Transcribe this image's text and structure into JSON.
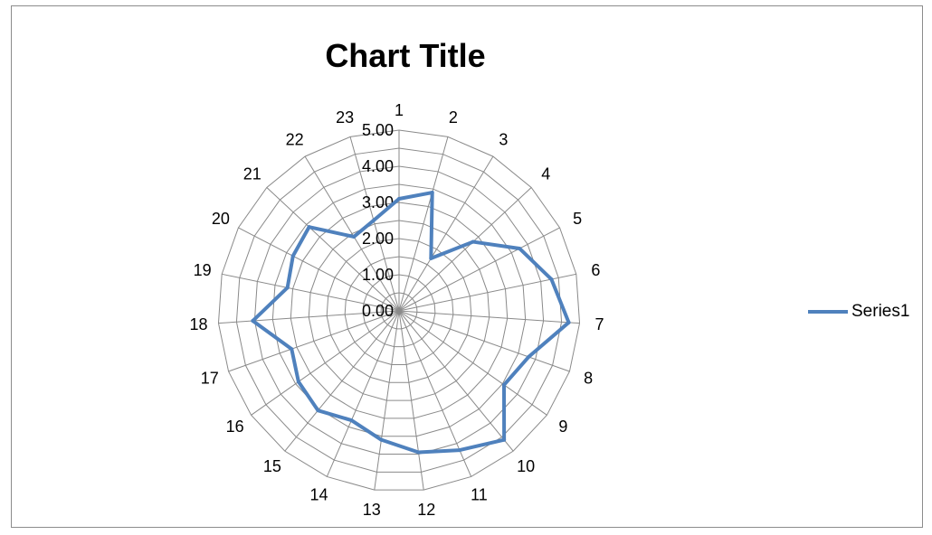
{
  "chart_data": {
    "type": "radar",
    "title": "Chart Title",
    "categories": [
      "1",
      "2",
      "3",
      "4",
      "5",
      "6",
      "7",
      "8",
      "9",
      "10",
      "11",
      "12",
      "13",
      "14",
      "15",
      "16",
      "17",
      "18",
      "19",
      "20",
      "21",
      "22",
      "23"
    ],
    "series": [
      {
        "name": "Series1",
        "color": "#4f81bd",
        "values": [
          3.1,
          3.4,
          1.7,
          2.8,
          3.75,
          4.3,
          4.7,
          3.8,
          3.55,
          4.6,
          4.2,
          3.95,
          3.6,
          3.3,
          3.55,
          3.4,
          3.15,
          4.05,
          3.15,
          3.3,
          3.4,
          2.4,
          2.6
        ]
      }
    ],
    "axis": {
      "min": 0,
      "max": 5,
      "ticks": [
        "0.00",
        "1.00",
        "2.00",
        "3.00",
        "4.00",
        "5.00"
      ]
    },
    "gridlines": true,
    "legend_position": "right"
  }
}
